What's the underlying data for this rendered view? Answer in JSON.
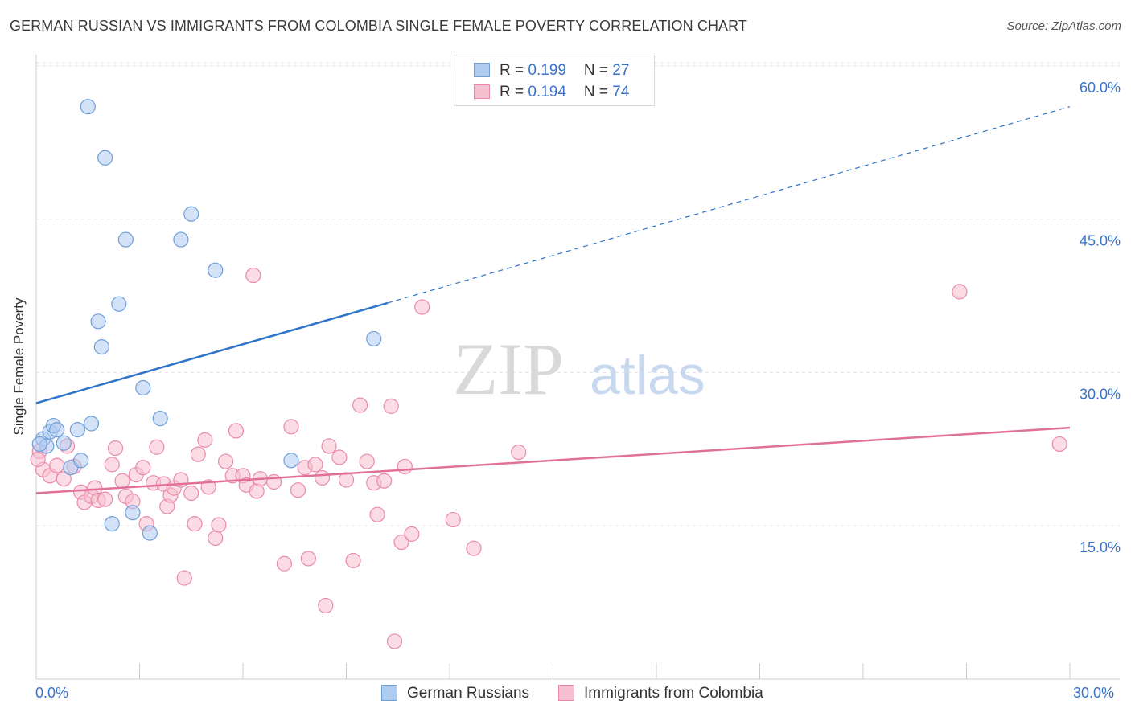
{
  "title": "GERMAN RUSSIAN VS IMMIGRANTS FROM COLOMBIA SINGLE FEMALE POVERTY CORRELATION CHART",
  "source": "Source: ZipAtlas.com",
  "watermark": {
    "zip": "ZIP",
    "atlas": "atlas"
  },
  "legend": {
    "rows": [
      {
        "r_label": "R = ",
        "r_value": "0.199",
        "n_label": "N = ",
        "n_value": "27"
      },
      {
        "r_label": "R = ",
        "r_value": "0.194",
        "n_label": "N = ",
        "n_value": "74"
      }
    ]
  },
  "colors": {
    "blue_fill": "#aecbf0",
    "blue_stroke": "#6f9fd8",
    "blue_line": "#2f74c8",
    "pink_fill": "#f7bfd0",
    "pink_stroke": "#ea8aaa",
    "pink_line": "#e0709a",
    "axis_label": "#3a73c9",
    "grid": "#e3e3e3"
  },
  "chart_data": {
    "type": "scatter",
    "title": "GERMAN RUSSIAN VS IMMIGRANTS FROM COLOMBIA SINGLE FEMALE POVERTY CORRELATION CHART",
    "xlabel": "",
    "ylabel": "Single Female Poverty",
    "xlim": [
      0,
      30
    ],
    "ylim": [
      0,
      62.5
    ],
    "x_tick_labels": [
      "0.0%",
      "30.0%"
    ],
    "y_ticks": [
      15,
      30,
      45,
      60
    ],
    "y_tick_labels": [
      "15.0%",
      "30.0%",
      "45.0%",
      "60.0%"
    ],
    "grid": true,
    "legend_position": "top-center",
    "series": [
      {
        "name": "German Russians",
        "r": 0.199,
        "n": 27,
        "trend": {
          "x": [
            0,
            10.2
          ],
          "y": [
            27.0,
            36.8
          ],
          "dashed_to": [
            30,
            56.0
          ]
        },
        "points": [
          {
            "x": 0.2,
            "y": 23.5
          },
          {
            "x": 0.3,
            "y": 22.8
          },
          {
            "x": 0.4,
            "y": 24.2
          },
          {
            "x": 0.5,
            "y": 24.8
          },
          {
            "x": 0.6,
            "y": 24.4
          },
          {
            "x": 0.8,
            "y": 23.1
          },
          {
            "x": 1.0,
            "y": 20.7
          },
          {
            "x": 1.2,
            "y": 24.4
          },
          {
            "x": 1.3,
            "y": 21.4
          },
          {
            "x": 1.6,
            "y": 25.0
          },
          {
            "x": 1.5,
            "y": 56.0
          },
          {
            "x": 2.0,
            "y": 51.0
          },
          {
            "x": 2.6,
            "y": 43.0
          },
          {
            "x": 4.2,
            "y": 43.0
          },
          {
            "x": 4.5,
            "y": 45.5
          },
          {
            "x": 5.2,
            "y": 40.0
          },
          {
            "x": 2.4,
            "y": 36.7
          },
          {
            "x": 1.8,
            "y": 35.0
          },
          {
            "x": 1.9,
            "y": 32.5
          },
          {
            "x": 3.1,
            "y": 28.5
          },
          {
            "x": 3.6,
            "y": 25.5
          },
          {
            "x": 2.2,
            "y": 15.2
          },
          {
            "x": 2.8,
            "y": 16.3
          },
          {
            "x": 3.3,
            "y": 14.3
          },
          {
            "x": 7.4,
            "y": 21.4
          },
          {
            "x": 9.8,
            "y": 33.3
          },
          {
            "x": 0.1,
            "y": 23.0
          }
        ]
      },
      {
        "name": "Immigrants from Colombia",
        "r": 0.194,
        "n": 74,
        "trend": {
          "x": [
            0,
            30
          ],
          "y": [
            18.2,
            24.6
          ]
        },
        "points": [
          {
            "x": 0.1,
            "y": 22.3
          },
          {
            "x": 0.2,
            "y": 20.5
          },
          {
            "x": 0.4,
            "y": 19.9
          },
          {
            "x": 0.6,
            "y": 20.9
          },
          {
            "x": 0.8,
            "y": 19.6
          },
          {
            "x": 0.9,
            "y": 22.8
          },
          {
            "x": 1.1,
            "y": 20.8
          },
          {
            "x": 1.3,
            "y": 18.3
          },
          {
            "x": 1.4,
            "y": 17.3
          },
          {
            "x": 1.6,
            "y": 17.9
          },
          {
            "x": 1.7,
            "y": 18.7
          },
          {
            "x": 1.8,
            "y": 17.5
          },
          {
            "x": 2.0,
            "y": 17.6
          },
          {
            "x": 2.2,
            "y": 21.0
          },
          {
            "x": 2.3,
            "y": 22.6
          },
          {
            "x": 2.5,
            "y": 19.4
          },
          {
            "x": 2.6,
            "y": 17.9
          },
          {
            "x": 2.8,
            "y": 17.4
          },
          {
            "x": 2.9,
            "y": 20.0
          },
          {
            "x": 3.1,
            "y": 20.7
          },
          {
            "x": 3.2,
            "y": 15.2
          },
          {
            "x": 3.4,
            "y": 19.2
          },
          {
            "x": 3.5,
            "y": 22.7
          },
          {
            "x": 3.7,
            "y": 19.1
          },
          {
            "x": 3.8,
            "y": 16.9
          },
          {
            "x": 3.9,
            "y": 18.0
          },
          {
            "x": 4.0,
            "y": 18.7
          },
          {
            "x": 4.2,
            "y": 19.5
          },
          {
            "x": 4.3,
            "y": 9.9
          },
          {
            "x": 4.5,
            "y": 18.2
          },
          {
            "x": 4.6,
            "y": 15.2
          },
          {
            "x": 4.7,
            "y": 22.0
          },
          {
            "x": 4.9,
            "y": 23.4
          },
          {
            "x": 5.0,
            "y": 18.8
          },
          {
            "x": 5.2,
            "y": 13.8
          },
          {
            "x": 5.3,
            "y": 15.1
          },
          {
            "x": 5.5,
            "y": 21.3
          },
          {
            "x": 5.7,
            "y": 19.9
          },
          {
            "x": 5.8,
            "y": 24.3
          },
          {
            "x": 6.0,
            "y": 19.9
          },
          {
            "x": 6.1,
            "y": 19.0
          },
          {
            "x": 6.3,
            "y": 39.5
          },
          {
            "x": 6.4,
            "y": 18.4
          },
          {
            "x": 6.5,
            "y": 19.6
          },
          {
            "x": 6.9,
            "y": 19.3
          },
          {
            "x": 7.2,
            "y": 11.3
          },
          {
            "x": 7.4,
            "y": 24.7
          },
          {
            "x": 7.6,
            "y": 18.5
          },
          {
            "x": 7.8,
            "y": 20.7
          },
          {
            "x": 7.9,
            "y": 11.8
          },
          {
            "x": 8.1,
            "y": 21.0
          },
          {
            "x": 8.3,
            "y": 19.7
          },
          {
            "x": 8.4,
            "y": 7.2
          },
          {
            "x": 8.5,
            "y": 22.8
          },
          {
            "x": 8.8,
            "y": 21.7
          },
          {
            "x": 9.0,
            "y": 19.5
          },
          {
            "x": 9.2,
            "y": 11.6
          },
          {
            "x": 9.4,
            "y": 26.8
          },
          {
            "x": 9.6,
            "y": 21.3
          },
          {
            "x": 9.8,
            "y": 19.2
          },
          {
            "x": 9.9,
            "y": 16.1
          },
          {
            "x": 10.1,
            "y": 19.4
          },
          {
            "x": 10.3,
            "y": 26.7
          },
          {
            "x": 10.4,
            "y": 3.7
          },
          {
            "x": 10.6,
            "y": 13.4
          },
          {
            "x": 10.7,
            "y": 20.8
          },
          {
            "x": 10.9,
            "y": 14.2
          },
          {
            "x": 11.2,
            "y": 36.4
          },
          {
            "x": 12.1,
            "y": 15.6
          },
          {
            "x": 12.7,
            "y": 12.8
          },
          {
            "x": 14.0,
            "y": 22.2
          },
          {
            "x": 26.8,
            "y": 37.9
          },
          {
            "x": 29.7,
            "y": 23.0
          },
          {
            "x": 0.05,
            "y": 21.5
          }
        ]
      }
    ]
  }
}
